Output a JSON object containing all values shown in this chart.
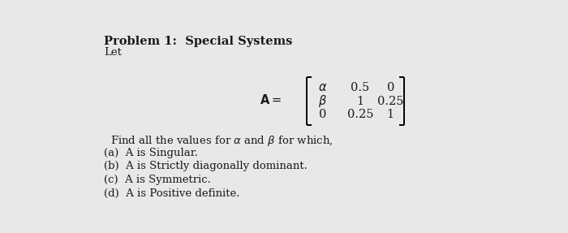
{
  "title": "Problem 1:  Special Systems",
  "subtitle": "Let",
  "background_color": "#e8e8e8",
  "text_color": "#1a1a1a",
  "find_text": "Find all the values for $\\alpha$ and $\\beta$ for which,",
  "parts": [
    "(a)  A is Singular.",
    "(b)  A is Strictly diagonally dominant.",
    "(c)  A is Symmetric.",
    "(d)  A is Positive definite."
  ],
  "title_fontsize": 10.5,
  "body_fontsize": 9.5,
  "matrix_fontsize": 10.5,
  "label_fontsize": 10.5
}
